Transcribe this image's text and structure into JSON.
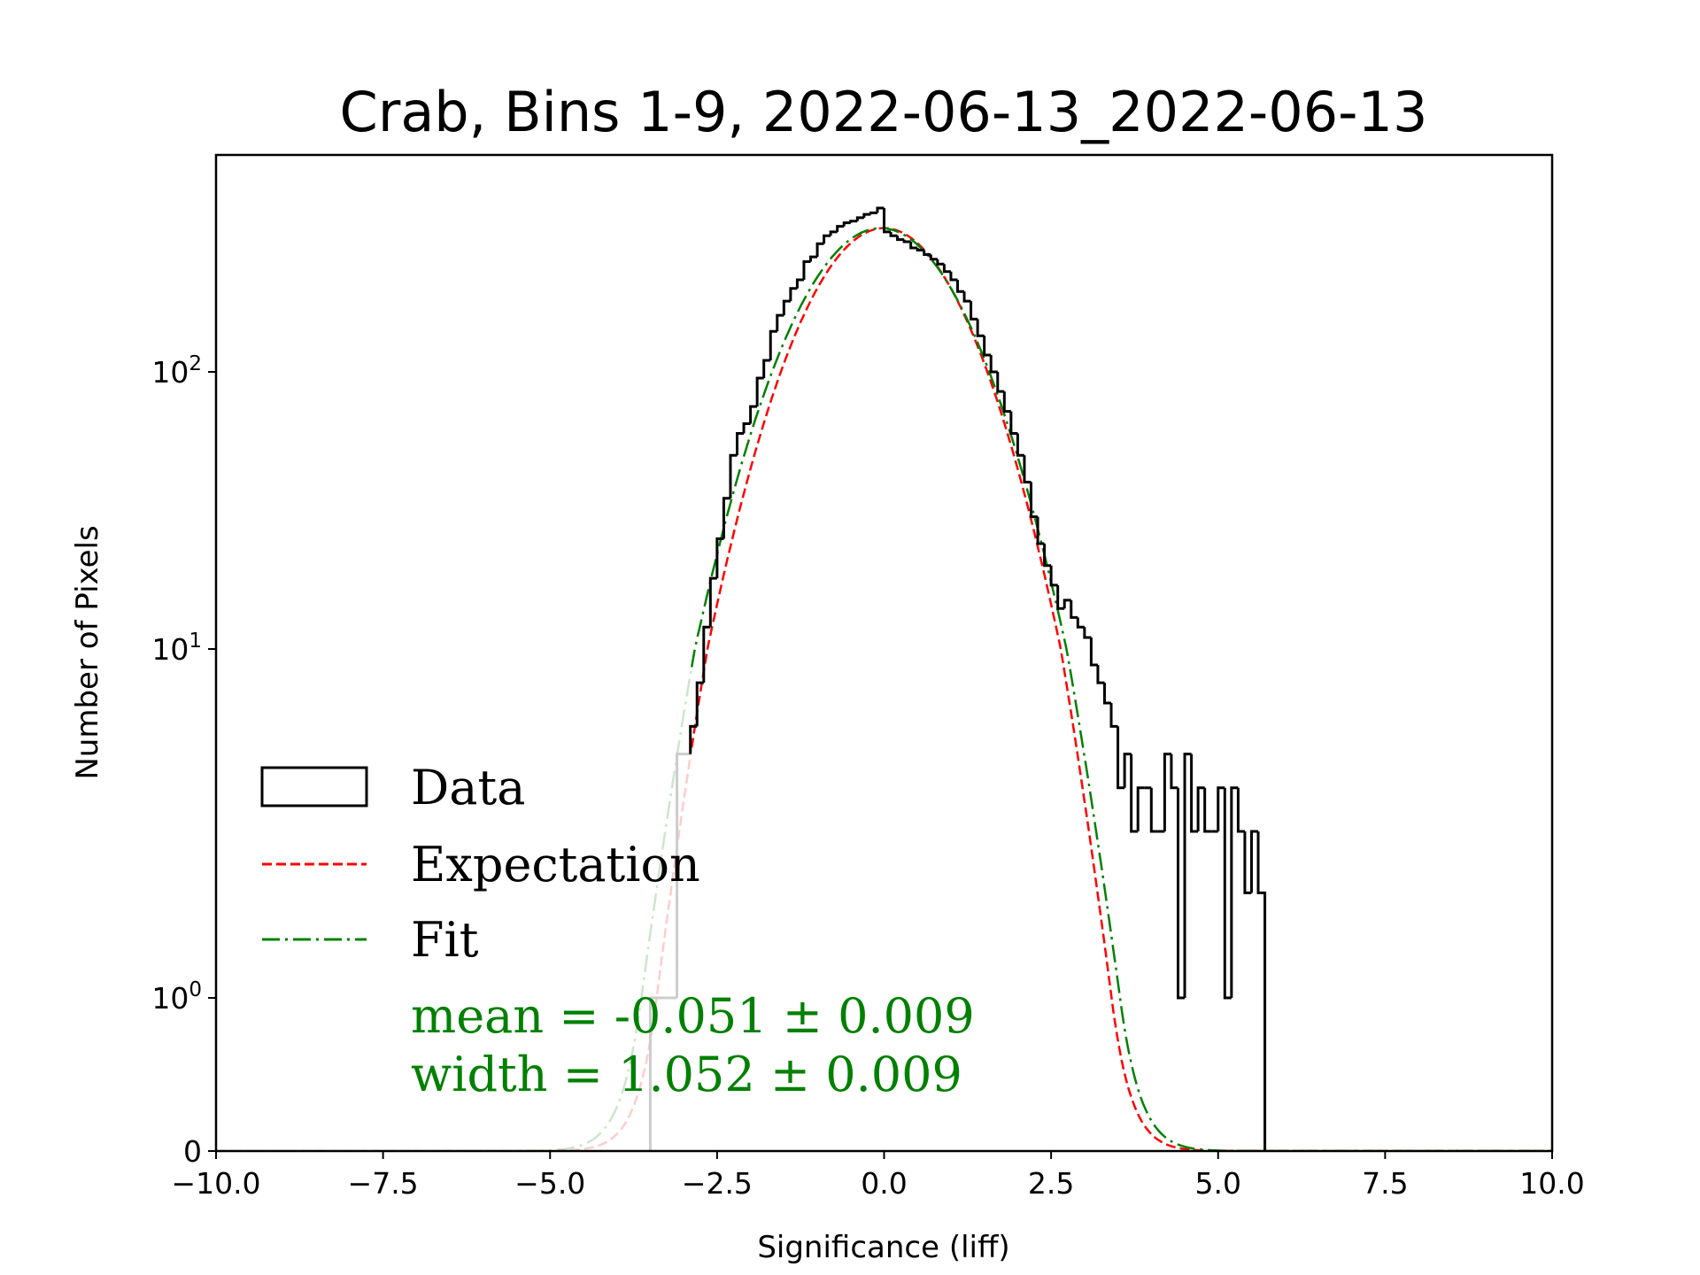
{
  "chart_data": {
    "type": "bar",
    "histtype": "step",
    "title": "Crab, Bins 1-9, 2022-06-13_2022-06-13",
    "xlabel": "Significance (liff)",
    "ylabel": "Number of Pixels",
    "xlim": [
      -10,
      10
    ],
    "yscale": "symlog",
    "ylim": [
      0,
      600
    ],
    "x_ticks": [
      "−10.0",
      "−7.5",
      "−5.0",
      "−2.5",
      "0.0",
      "2.5",
      "5.0",
      "7.5",
      "10.0"
    ],
    "x_tick_values": [
      -10,
      -7.5,
      -5,
      -2.5,
      0,
      2.5,
      5,
      7.5,
      10
    ],
    "y_ticks": [
      {
        "value": 0,
        "base": "0",
        "exp": ""
      },
      {
        "value": 1,
        "base": "10",
        "exp": "0"
      },
      {
        "value": 10,
        "base": "10",
        "exp": "1"
      },
      {
        "value": 100,
        "base": "10",
        "exp": "2"
      }
    ],
    "histogram": {
      "bin_start": -3.5,
      "bin_width": 0.1,
      "faded_below": -2.9,
      "counts": [
        1,
        1,
        1,
        1,
        5,
        5,
        6,
        8,
        12,
        18,
        25,
        35,
        50,
        60,
        65,
        75,
        95,
        110,
        140,
        160,
        180,
        200,
        215,
        250,
        260,
        290,
        310,
        320,
        335,
        345,
        350,
        360,
        370,
        375,
        390,
        320,
        310,
        300,
        295,
        280,
        275,
        265,
        255,
        245,
        230,
        215,
        195,
        180,
        155,
        135,
        115,
        100,
        85,
        72,
        60,
        50,
        40,
        30,
        24,
        20,
        17,
        14,
        15,
        13,
        12,
        11,
        9,
        8,
        7,
        6,
        4,
        5,
        3,
        4,
        4,
        3,
        3,
        5,
        4,
        1,
        5,
        3,
        4,
        3,
        3,
        4,
        1,
        4,
        3,
        2,
        3,
        2
      ]
    },
    "curves": [
      {
        "name": "Expectation",
        "mean": 0.0,
        "width": 1.0,
        "amplitude": 330,
        "color": "#ff0000",
        "style": "dashed"
      },
      {
        "name": "Fit",
        "mean": -0.051,
        "width": 1.052,
        "amplitude": 330,
        "color": "#008000",
        "style": "dashdot"
      }
    ],
    "legend": {
      "placement": "lower-left",
      "entries": [
        {
          "label": "Data",
          "kind": "box",
          "color": "#000000"
        },
        {
          "label": "Expectation",
          "kind": "dashed",
          "color": "#ff0000"
        },
        {
          "label": "Fit",
          "kind": "dashdot",
          "color": "#008000"
        }
      ],
      "annotations": [
        "mean = -0.051 ± 0.009",
        "width = 1.052 ± 0.009"
      ],
      "annotation_color": "#008000"
    }
  }
}
